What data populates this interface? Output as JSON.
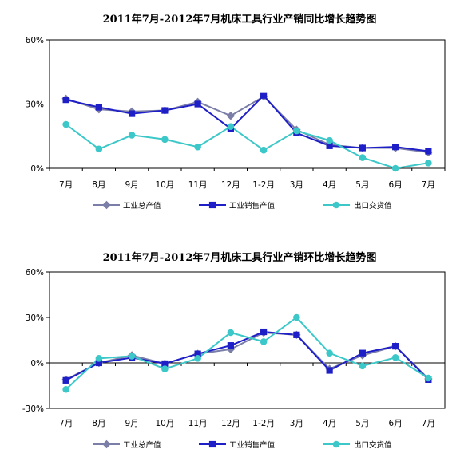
{
  "chart_data": [
    {
      "type": "line",
      "title": "2011年7月-2012年7月机床工具行业产销同比增长趋势图",
      "categories": [
        "7月",
        "8月",
        "9月",
        "10月",
        "11月",
        "12月",
        "1-2月",
        "3月",
        "4月",
        "5月",
        "6月",
        "7月"
      ],
      "ylim": [
        0,
        60
      ],
      "yticks": [
        "0%",
        "30%",
        "60%"
      ],
      "grid": false,
      "legend": "bottom",
      "series": [
        {
          "name": "工业总产值",
          "color": "#7b7fa8",
          "marker": "diamond",
          "values": [
            32.5,
            27.5,
            26.5,
            27.0,
            31.0,
            24.5,
            33.5,
            18.0,
            11.0,
            9.5,
            9.5,
            7.5
          ]
        },
        {
          "name": "工业销售产值",
          "color": "#1f1fc8",
          "marker": "square",
          "values": [
            32.0,
            28.5,
            25.5,
            27.0,
            30.0,
            18.5,
            34.0,
            16.5,
            10.5,
            9.5,
            10.0,
            8.0
          ]
        },
        {
          "name": "出口交货值",
          "color": "#3cc8c8",
          "marker": "circle",
          "values": [
            20.5,
            9.0,
            15.5,
            13.5,
            10.0,
            19.5,
            8.5,
            17.5,
            13.0,
            5.0,
            0.0,
            2.5
          ]
        }
      ]
    },
    {
      "type": "line",
      "title": "2011年7月-2012年7月机床工具行业产销环比增长趋势图",
      "categories": [
        "7月",
        "8月",
        "9月",
        "10月",
        "11月",
        "12月",
        "1-2月",
        "3月",
        "4月",
        "5月",
        "6月",
        "7月"
      ],
      "ylim": [
        -30,
        60
      ],
      "yticks": [
        "-30%",
        "0%",
        "30%",
        "60%"
      ],
      "grid": false,
      "legend": "bottom",
      "series": [
        {
          "name": "工业总产值",
          "color": "#7b7fa8",
          "marker": "diamond",
          "values": [
            -11.0,
            0.0,
            5.0,
            -0.5,
            6.0,
            9.0,
            20.0,
            18.5,
            -4.0,
            5.0,
            11.0,
            -10.5
          ]
        },
        {
          "name": "工业销售产值",
          "color": "#1f1fc8",
          "marker": "square",
          "values": [
            -11.5,
            0.0,
            3.5,
            -0.5,
            6.0,
            11.5,
            20.5,
            18.5,
            -5.0,
            6.5,
            11.0,
            -11.0
          ]
        },
        {
          "name": "出口交货值",
          "color": "#3cc8c8",
          "marker": "circle",
          "values": [
            -17.5,
            3.0,
            4.5,
            -4.0,
            3.0,
            20.0,
            14.0,
            30.0,
            6.5,
            -2.0,
            3.5,
            -10.0
          ]
        }
      ]
    }
  ]
}
